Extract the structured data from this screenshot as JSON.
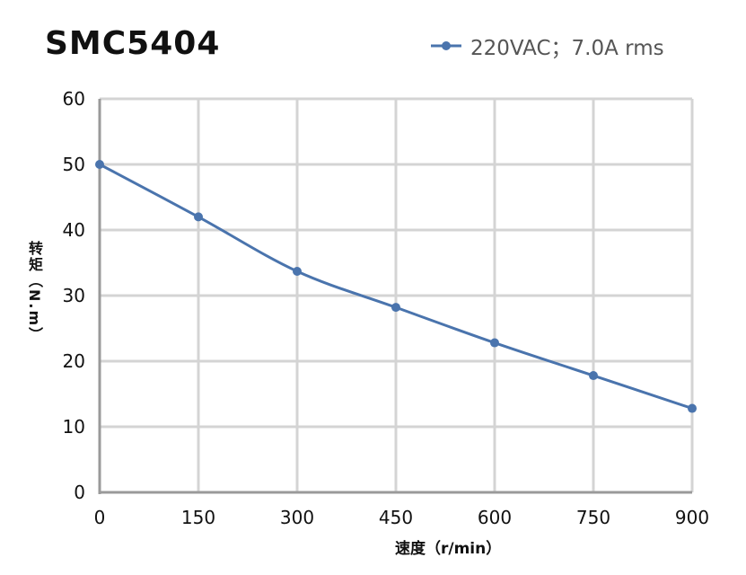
{
  "chart_data": {
    "type": "line",
    "title": "SMC5404",
    "xlabel": "速度（r/min）",
    "ylabel": "转矩（N.m）",
    "xlim": [
      0,
      900
    ],
    "ylim": [
      0,
      60
    ],
    "x_ticks": [
      "0",
      "150",
      "300",
      "450",
      "600",
      "750",
      "900"
    ],
    "y_ticks": [
      "0",
      "10",
      "20",
      "30",
      "40",
      "50",
      "60"
    ],
    "grid": true,
    "legend_position": "top-right",
    "x": [
      0,
      150,
      300,
      450,
      600,
      750,
      900
    ],
    "series": [
      {
        "name": "220VAC；7.0A rms",
        "values": [
          50,
          42,
          33.7,
          28.2,
          22.8,
          17.8,
          12.8
        ],
        "color": "#4a74ad"
      }
    ]
  }
}
